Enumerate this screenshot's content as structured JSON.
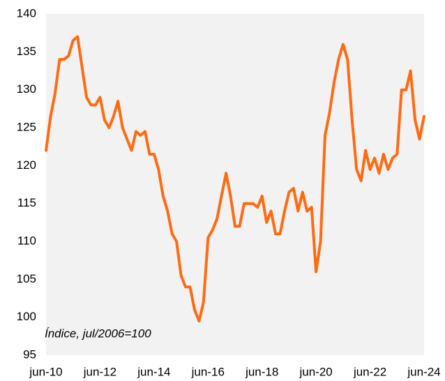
{
  "chart_data": {
    "type": "line",
    "annotation": "Índice, jul/2006=100",
    "categories": [
      "jun-10",
      null,
      null,
      null,
      null,
      null,
      null,
      null,
      null,
      null,
      null,
      null,
      "jun-12",
      null,
      null,
      null,
      null,
      null,
      null,
      null,
      null,
      null,
      null,
      null,
      "jun-14",
      null,
      null,
      null,
      null,
      null,
      null,
      null,
      null,
      null,
      null,
      null,
      "jun-16",
      null,
      null,
      null,
      null,
      null,
      null,
      null,
      null,
      null,
      null,
      null,
      "jun-18",
      null,
      null,
      null,
      null,
      null,
      null,
      null,
      null,
      null,
      null,
      null,
      "jun-20",
      null,
      null,
      null,
      null,
      null,
      null,
      null,
      null,
      null,
      null,
      null,
      "jun-22",
      null,
      null,
      null,
      null,
      null,
      null,
      null,
      null,
      null,
      null,
      null,
      "jun-24"
    ],
    "series": [
      {
        "name": null,
        "color": "#ff6b12",
        "values": [
          122,
          126.5,
          129.5,
          134,
          134,
          134.5,
          136.5,
          137,
          133,
          129,
          128,
          128,
          129,
          126,
          125,
          126.5,
          128.5,
          125,
          123.5,
          122,
          124.5,
          124,
          124.5,
          121.5,
          121.5,
          119.5,
          116,
          114,
          111,
          110,
          105.5,
          104,
          104,
          101,
          99.5,
          102,
          110.5,
          111.5,
          113,
          116,
          119,
          116,
          112,
          112,
          115,
          115,
          115,
          114.5,
          116,
          112.5,
          114,
          111,
          111,
          114,
          116.5,
          117,
          114,
          116.5,
          114,
          114.5,
          106,
          110,
          124,
          127,
          131,
          134,
          136,
          134,
          126,
          119.5,
          118,
          122,
          119.5,
          121,
          119,
          121.5,
          119.5,
          121,
          121.5,
          130,
          130,
          132.5,
          126,
          123.5,
          126.5
        ]
      }
    ],
    "ylim": [
      95,
      140
    ],
    "yticks": [
      95,
      100,
      105,
      110,
      115,
      120,
      125,
      130,
      135,
      140
    ],
    "grid": false
  }
}
